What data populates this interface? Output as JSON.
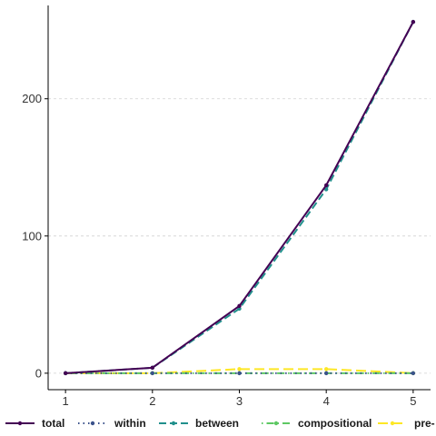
{
  "chart_data": {
    "type": "line",
    "title": "",
    "xlabel": "",
    "ylabel": "",
    "x": [
      1,
      2,
      3,
      4,
      5
    ],
    "xlim": [
      0.8,
      5.2
    ],
    "ylim": [
      -12,
      268
    ],
    "x_ticks": [
      "1",
      "2",
      "3",
      "4",
      "5"
    ],
    "y_ticks": [
      0,
      100,
      200
    ],
    "y_tick_labels": [
      "0",
      "100",
      "200"
    ],
    "grid": "horizontal dashed (major y only)",
    "legend_position": "bottom",
    "series": [
      {
        "name": "total",
        "values": [
          0,
          4,
          49,
          137,
          256
        ],
        "color": "#440154",
        "linestyle": "solid"
      },
      {
        "name": "within",
        "values": [
          0,
          0,
          0,
          0,
          0
        ],
        "color": "#3b528b",
        "linestyle": "dotted"
      },
      {
        "name": "between",
        "values": [
          0,
          4,
          47,
          134,
          256
        ],
        "color": "#21908c",
        "linestyle": "dashed"
      },
      {
        "name": "compositional",
        "values": [
          0,
          0,
          0,
          0,
          0
        ],
        "color": "#5dc863",
        "linestyle": "dotdash"
      },
      {
        "name": "pre-",
        "values": [
          0,
          0,
          3,
          3,
          0
        ],
        "color": "#fde725",
        "linestyle": "longdash"
      }
    ]
  }
}
